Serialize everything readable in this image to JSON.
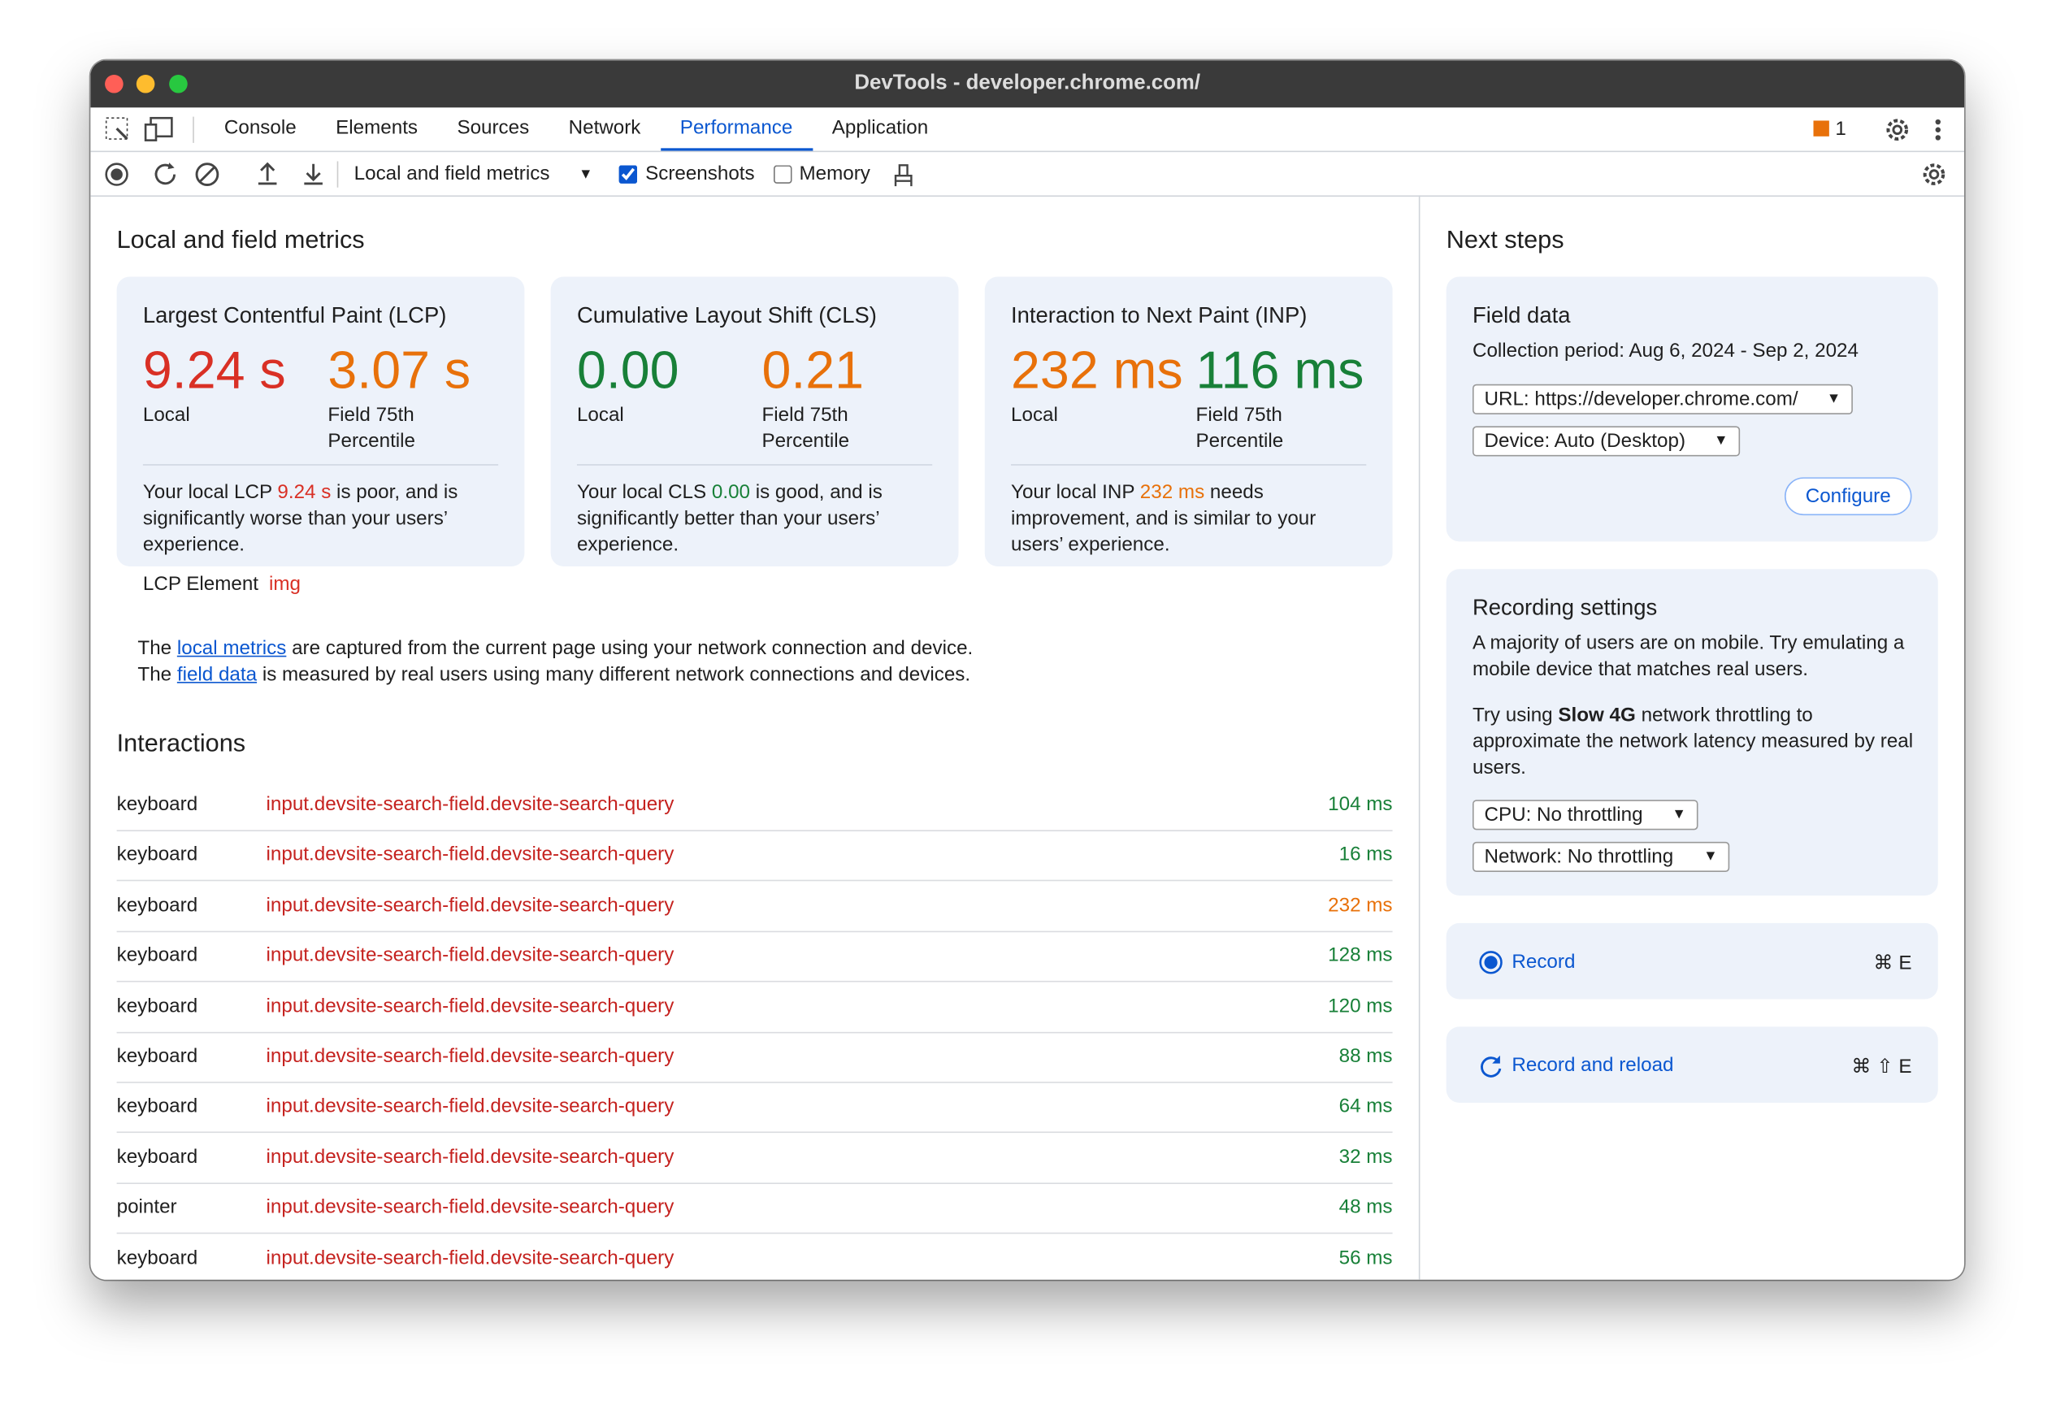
{
  "window": {
    "title": "DevTools - developer.chrome.com/"
  },
  "tabs": [
    "Console",
    "Elements",
    "Sources",
    "Network",
    "Performance",
    "Application"
  ],
  "active_tab": "Performance",
  "issues_count": "1",
  "toolbar": {
    "mode": "Local and field metrics",
    "screenshots": {
      "label": "Screenshots",
      "checked": true
    },
    "memory": {
      "label": "Memory",
      "checked": false
    }
  },
  "main": {
    "title": "Local and field metrics",
    "cards": [
      {
        "title": "Largest Contentful Paint (LCP)",
        "local": {
          "value": "9.24 s",
          "label": "Local",
          "rating": "poor"
        },
        "field": {
          "value": "3.07 s",
          "label": "Field 75th Percentile",
          "rating": "needs-improvement"
        },
        "description": {
          "before": "Your local LCP ",
          "value": "9.24 s",
          "rating": "poor",
          "after": " is poor, and is significantly worse than your users’ experience."
        },
        "element": {
          "label": "LCP Element",
          "value": "img"
        }
      },
      {
        "title": "Cumulative Layout Shift (CLS)",
        "local": {
          "value": "0.00",
          "label": "Local",
          "rating": "good"
        },
        "field": {
          "value": "0.21",
          "label": "Field 75th Percentile",
          "rating": "needs-improvement"
        },
        "description": {
          "before": "Your local CLS ",
          "value": "0.00",
          "rating": "good",
          "after": " is good, and is significantly better than your users’ experience."
        }
      },
      {
        "title": "Interaction to Next Paint (INP)",
        "local": {
          "value": "232 ms",
          "label": "Local",
          "rating": "needs-improvement"
        },
        "field": {
          "value": "116 ms",
          "label": "Field 75th Percentile",
          "rating": "good"
        },
        "description": {
          "before": "Your local INP ",
          "value": "232 ms",
          "rating": "needs-improvement",
          "after": " needs improvement, and is similar to your users’ experience."
        }
      }
    ],
    "note": [
      {
        "before": "The ",
        "link": "local metrics",
        "after": " are captured from the current page using your network connection and device."
      },
      {
        "before": "The ",
        "link": "field data",
        "after": " is measured by real users using many different network connections and devices."
      }
    ]
  },
  "interactions": {
    "title": "Interactions",
    "rows": [
      {
        "type": "keyboard",
        "target": "input.devsite-search-field.devsite-search-query",
        "duration": "104 ms",
        "rating": "good"
      },
      {
        "type": "keyboard",
        "target": "input.devsite-search-field.devsite-search-query",
        "duration": "16 ms",
        "rating": "good"
      },
      {
        "type": "keyboard",
        "target": "input.devsite-search-field.devsite-search-query",
        "duration": "232 ms",
        "rating": "needs-improvement"
      },
      {
        "type": "keyboard",
        "target": "input.devsite-search-field.devsite-search-query",
        "duration": "128 ms",
        "rating": "good"
      },
      {
        "type": "keyboard",
        "target": "input.devsite-search-field.devsite-search-query",
        "duration": "120 ms",
        "rating": "good"
      },
      {
        "type": "keyboard",
        "target": "input.devsite-search-field.devsite-search-query",
        "duration": "88 ms",
        "rating": "good"
      },
      {
        "type": "keyboard",
        "target": "input.devsite-search-field.devsite-search-query",
        "duration": "64 ms",
        "rating": "good"
      },
      {
        "type": "keyboard",
        "target": "input.devsite-search-field.devsite-search-query",
        "duration": "32 ms",
        "rating": "good"
      },
      {
        "type": "pointer",
        "target": "input.devsite-search-field.devsite-search-query",
        "duration": "48 ms",
        "rating": "good"
      },
      {
        "type": "keyboard",
        "target": "input.devsite-search-field.devsite-search-query",
        "duration": "56 ms",
        "rating": "good"
      }
    ]
  },
  "sidebar": {
    "title": "Next steps",
    "field_data": {
      "title": "Field data",
      "period": "Collection period: Aug 6, 2024 - Sep 2, 2024",
      "url": "URL: https://developer.chrome.com/",
      "device": "Device: Auto (Desktop)",
      "button": "Configure"
    },
    "recording": {
      "title": "Recording settings",
      "p1": "A majority of users are on mobile. Try emulating a mobile device that matches real users.",
      "p2": {
        "before": "Try using ",
        "bold": "Slow 4G",
        "after": " network throttling to approximate the network latency measured by real users."
      },
      "cpu": "CPU: No throttling",
      "network": "Network: No throttling"
    },
    "record": {
      "label": "Record",
      "shortcut": "⌘ E"
    },
    "reload": {
      "label": "Record and reload",
      "shortcut": "⌘ ⇧ E"
    }
  }
}
